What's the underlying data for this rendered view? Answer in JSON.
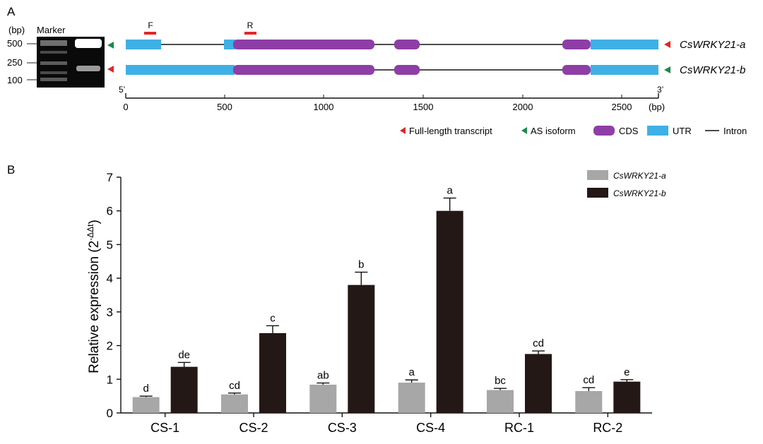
{
  "panel_a": {
    "label": "A",
    "gel": {
      "unit_label": "(bp)",
      "marker_label": "Marker",
      "ladder": [
        "500",
        "250",
        "100"
      ]
    },
    "primers": {
      "forward": "F",
      "reverse": "R"
    },
    "transcripts": [
      {
        "name": "CsWRKY21-a",
        "left_marker": "green",
        "right_marker": "red"
      },
      {
        "name": "CsWRKY21-b",
        "left_marker": "red",
        "right_marker": "green"
      }
    ],
    "axis": {
      "five_prime": "5’",
      "three_prime": "3’",
      "ticks": [
        "0",
        "500",
        "1000",
        "1500",
        "2000",
        "2500"
      ],
      "unit": "(bp)"
    },
    "legend": {
      "full_length": "Full-length transcript",
      "as_isoform": "AS isoform",
      "cds": "CDS",
      "utr": "UTR",
      "intron": "Intron"
    },
    "colors": {
      "utr": "#3eb0e6",
      "cds": "#8e3ea6",
      "red": "#e32626",
      "green": "#1d8a4c"
    }
  },
  "panel_b": {
    "label": "B"
  },
  "chart_data": {
    "type": "bar",
    "title": "",
    "xlabel": "",
    "ylabel": "Relative expression (2",
    "ylabel_sup": "-ΔΔt",
    "ylabel_close": ")",
    "ylim": [
      0,
      7
    ],
    "yticks": [
      "0",
      "1",
      "2",
      "3",
      "4",
      "5",
      "6",
      "7"
    ],
    "categories": [
      "CS-1",
      "CS-2",
      "CS-3",
      "CS-4",
      "RC-1",
      "RC-2"
    ],
    "legend_position": "top-right",
    "series": [
      {
        "name": "CsWRKY21-a",
        "color": "#a7a7a7",
        "values": [
          0.47,
          0.55,
          0.84,
          0.9,
          0.68,
          0.65
        ],
        "errors": [
          0.03,
          0.04,
          0.05,
          0.08,
          0.05,
          0.1
        ],
        "letters": [
          "d",
          "cd",
          "ab",
          "a",
          "bc",
          "cd"
        ]
      },
      {
        "name": "CsWRKY21-b",
        "color": "#231815",
        "values": [
          1.37,
          2.37,
          3.8,
          6.0,
          1.75,
          0.93
        ],
        "errors": [
          0.13,
          0.22,
          0.38,
          0.38,
          0.09,
          0.06
        ],
        "letters": [
          "de",
          "c",
          "b",
          "a",
          "cd",
          "e"
        ]
      }
    ]
  }
}
